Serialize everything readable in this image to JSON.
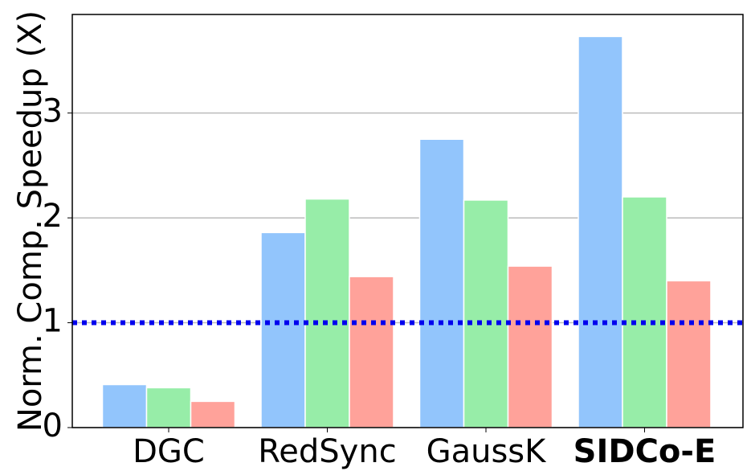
{
  "chart_data": {
    "type": "bar",
    "ylabel": "Norm. Comp. Speedup (X)",
    "categories": [
      "DGC",
      "RedSync",
      "GaussK",
      "SIDCo-E"
    ],
    "category_colors": [
      "#000000",
      "#000000",
      "#000000",
      "#ff0000"
    ],
    "series": [
      {
        "color": "#92c5fc",
        "values": [
          0.41,
          1.86,
          2.75,
          3.73
        ]
      },
      {
        "color": "#97eda8",
        "values": [
          0.38,
          2.18,
          2.17,
          2.2
        ]
      },
      {
        "color": "#ffa29a",
        "values": [
          0.25,
          1.44,
          1.54,
          1.4
        ]
      }
    ],
    "ylim": [
      0,
      3.94
    ],
    "yticks": [
      0,
      1,
      2,
      3
    ],
    "grid": true,
    "reference_line": {
      "value": 1,
      "color": "#0000ee"
    }
  }
}
